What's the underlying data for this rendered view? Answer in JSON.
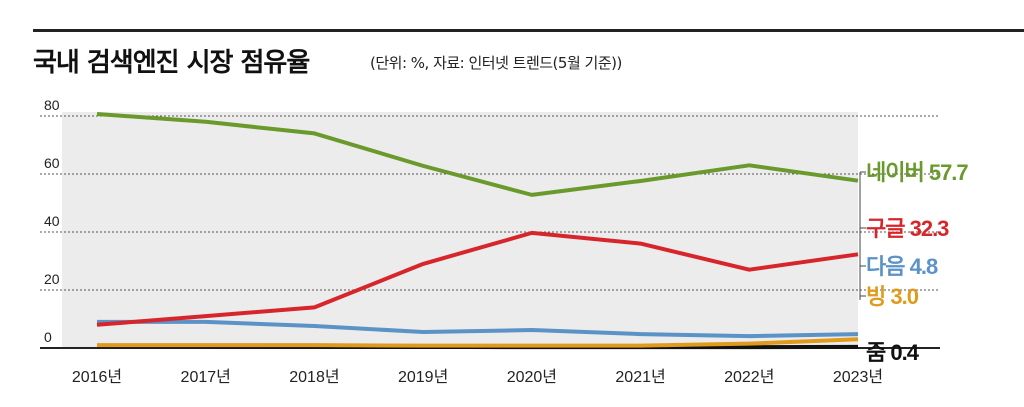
{
  "chart_data": {
    "type": "line",
    "title": "국내 검색엔진 시장 점유율",
    "subtitle": "(단위: %, 자료: 인터넷 트렌드(5월 기준))",
    "categories": [
      "2016년",
      "2017년",
      "2018년",
      "2019년",
      "2020년",
      "2021년",
      "2022년",
      "2023년"
    ],
    "yticks": [
      0,
      20,
      40,
      60,
      80
    ],
    "ylim": [
      0,
      80
    ],
    "grid": true,
    "series": [
      {
        "name": "네이버",
        "label": "네이버 57.7",
        "color": "#6a9a2c",
        "values": [
          80.7,
          78,
          74,
          62.8,
          52.8,
          57.6,
          63,
          57.7
        ]
      },
      {
        "name": "구글",
        "label": "구글 32.3",
        "color": "#d7262b",
        "values": [
          8,
          11,
          14,
          29,
          39.7,
          36,
          27,
          32.3
        ]
      },
      {
        "name": "다음",
        "label": "다음 4.8",
        "color": "#5b93c7",
        "values": [
          9,
          9,
          7.6,
          5.5,
          6.2,
          4.8,
          4.1,
          4.8
        ]
      },
      {
        "name": "빙",
        "label": "빙 3.0",
        "color": "#e09a1c",
        "values": [
          1,
          1,
          1,
          0.8,
          0.8,
          0.8,
          1.5,
          3.0
        ]
      },
      {
        "name": "줌",
        "label": "줌 0.4",
        "color": "#111111",
        "values": [
          0.6,
          0.6,
          0.5,
          0.4,
          0.3,
          0.3,
          0.3,
          0.4
        ]
      }
    ]
  }
}
